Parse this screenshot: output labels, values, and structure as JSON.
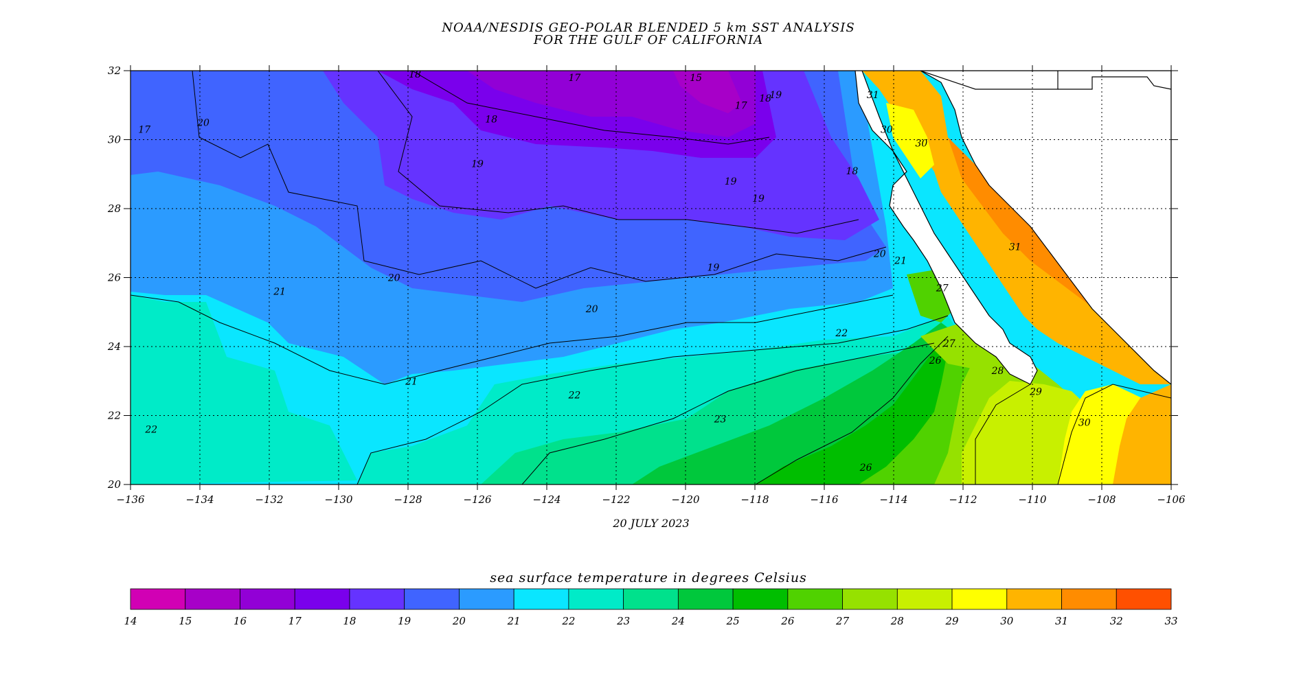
{
  "title": {
    "line1": "NOAA/NESDIS GEO-POLAR BLENDED 5 km SST ANALYSIS",
    "line2": "FOR THE GULF OF CALIFORNIA"
  },
  "date": "20 JULY 2023",
  "map": {
    "lon_range": [
      -136,
      -106
    ],
    "lat_range": [
      20,
      32
    ],
    "lon_ticks": [
      "−136",
      "−134",
      "−132",
      "−130",
      "−128",
      "−126",
      "−124",
      "−122",
      "−120",
      "−118",
      "−116",
      "−114",
      "−112",
      "−110",
      "−108",
      "−106"
    ],
    "lat_ticks": [
      "20",
      "22",
      "24",
      "26",
      "28",
      "30",
      "32"
    ]
  },
  "colorbar": {
    "title": "sea surface temperature in degrees Celsius",
    "min": 14,
    "max": 33,
    "tick_labels": [
      "14",
      "15",
      "16",
      "17",
      "18",
      "19",
      "20",
      "21",
      "22",
      "23",
      "24",
      "25",
      "26",
      "27",
      "28",
      "29",
      "30",
      "31",
      "32",
      "33"
    ],
    "colors": [
      "#d100b4",
      "#a700c8",
      "#9200d6",
      "#7a00ec",
      "#6533ff",
      "#4064ff",
      "#2b9bff",
      "#0ae6ff",
      "#00ebc8",
      "#00e18c",
      "#00c83c",
      "#00be00",
      "#50d200",
      "#96e100",
      "#c8f000",
      "#ffff00",
      "#ffb400",
      "#ff8c00",
      "#ff5000"
    ]
  },
  "contour_labels": [
    {
      "text": "18",
      "lon": -127.8,
      "lat": 31.8
    },
    {
      "text": "17",
      "lon": -123.2,
      "lat": 31.7
    },
    {
      "text": "15",
      "lon": -119.7,
      "lat": 31.7
    },
    {
      "text": "18",
      "lon": -117.7,
      "lat": 31.1
    },
    {
      "text": "17",
      "lon": -118.4,
      "lat": 30.9
    },
    {
      "text": "19",
      "lon": -117.4,
      "lat": 31.2
    },
    {
      "text": "18",
      "lon": -125.6,
      "lat": 30.5
    },
    {
      "text": "20",
      "lon": -133.9,
      "lat": 30.4
    },
    {
      "text": "17",
      "lon": -135.6,
      "lat": 30.2
    },
    {
      "text": "19",
      "lon": -126.0,
      "lat": 29.2
    },
    {
      "text": "19",
      "lon": -118.7,
      "lat": 28.7
    },
    {
      "text": "19",
      "lon": -117.9,
      "lat": 28.2
    },
    {
      "text": "18",
      "lon": -115.2,
      "lat": 29.0
    },
    {
      "text": "20",
      "lon": -114.4,
      "lat": 26.6
    },
    {
      "text": "21",
      "lon": -113.8,
      "lat": 26.4
    },
    {
      "text": "20",
      "lon": -128.4,
      "lat": 25.9
    },
    {
      "text": "19",
      "lon": -119.2,
      "lat": 26.2
    },
    {
      "text": "21",
      "lon": -131.7,
      "lat": 25.5
    },
    {
      "text": "20",
      "lon": -122.7,
      "lat": 25.0
    },
    {
      "text": "22",
      "lon": -115.5,
      "lat": 24.3
    },
    {
      "text": "27",
      "lon": -112.6,
      "lat": 25.6
    },
    {
      "text": "21",
      "lon": -127.9,
      "lat": 22.9
    },
    {
      "text": "22",
      "lon": -123.2,
      "lat": 22.5
    },
    {
      "text": "23",
      "lon": -119.0,
      "lat": 21.8
    },
    {
      "text": "26",
      "lon": -112.8,
      "lat": 23.5
    },
    {
      "text": "27",
      "lon": -112.4,
      "lat": 24.0
    },
    {
      "text": "28",
      "lon": -111.0,
      "lat": 23.2
    },
    {
      "text": "29",
      "lon": -109.9,
      "lat": 22.6
    },
    {
      "text": "30",
      "lon": -108.5,
      "lat": 21.7
    },
    {
      "text": "22",
      "lon": -135.4,
      "lat": 21.5
    },
    {
      "text": "26",
      "lon": -114.8,
      "lat": 20.4
    },
    {
      "text": "31",
      "lon": -114.6,
      "lat": 31.2
    },
    {
      "text": "30",
      "lon": -114.2,
      "lat": 30.2
    },
    {
      "text": "30",
      "lon": -113.2,
      "lat": 29.8
    },
    {
      "text": "31",
      "lon": -110.5,
      "lat": 26.8
    }
  ]
}
